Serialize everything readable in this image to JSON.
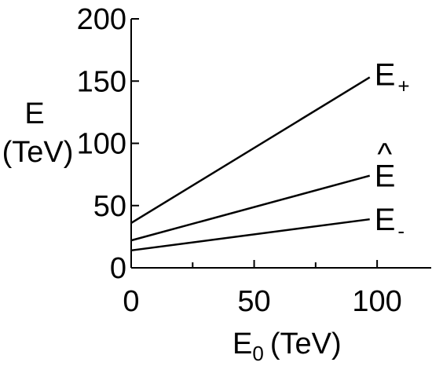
{
  "chart_data": {
    "type": "line",
    "xlabel_main": "E",
    "xlabel_sub": "0",
    "xlabel_unit": "(TeV)",
    "ylabel_line1": "E",
    "ylabel_line2": "(TeV)",
    "xlim": [
      0,
      122
    ],
    "ylim": [
      0,
      200
    ],
    "x_ticks": [
      0,
      50,
      100
    ],
    "x_minor_ticks": [
      25,
      75
    ],
    "y_ticks": [
      0,
      50,
      100,
      150,
      200
    ],
    "series": [
      {
        "name": "E",
        "subscript": "+",
        "x": [
          0,
          97
        ],
        "y": [
          36,
          153
        ]
      },
      {
        "name": "E",
        "accent": "^",
        "x": [
          0,
          97
        ],
        "y": [
          22,
          74
        ]
      },
      {
        "name": "E",
        "subscript": "-",
        "x": [
          0,
          97
        ],
        "y": [
          14,
          39
        ]
      }
    ]
  }
}
